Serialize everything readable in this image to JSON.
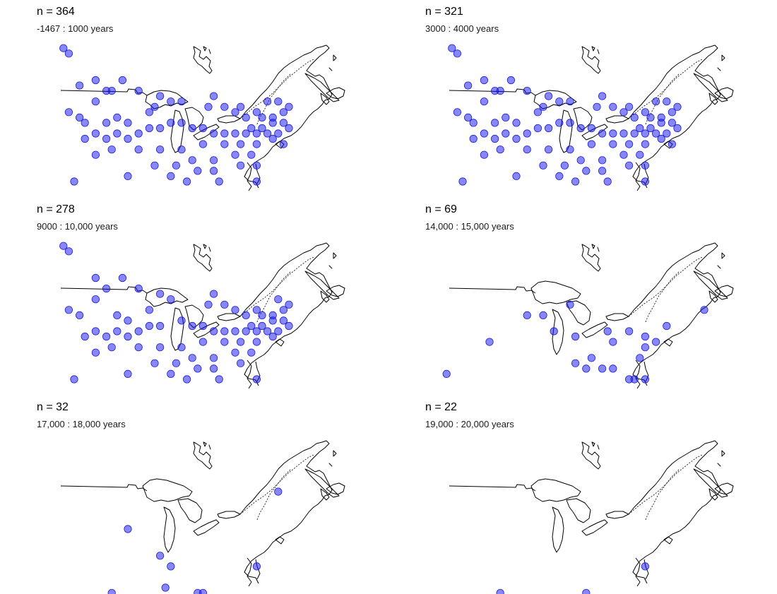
{
  "colors": {
    "site_fill": "#1010f0",
    "site_stroke": "#1e1ed8",
    "outline": "#000000",
    "background": "#ffffff"
  },
  "panels": [
    {
      "count_label": "n = 364",
      "range_label": "-1467 : 1000 years",
      "n": 364,
      "sites": [
        [
          -112,
          56
        ],
        [
          -111,
          55
        ],
        [
          -109,
          49
        ],
        [
          -106,
          50
        ],
        [
          -101,
          50
        ],
        [
          -104,
          48
        ],
        [
          -103,
          48
        ],
        [
          -111,
          44
        ],
        [
          -109,
          43
        ],
        [
          -106,
          46
        ],
        [
          -102,
          43
        ],
        [
          -98,
          48
        ],
        [
          -96,
          44
        ],
        [
          -95,
          45
        ],
        [
          -108,
          39
        ],
        [
          -104,
          39
        ],
        [
          -100,
          39
        ],
        [
          -94,
          47
        ],
        [
          -92,
          46
        ],
        [
          -90,
          46
        ],
        [
          -84,
          47
        ],
        [
          -85,
          45
        ],
        [
          -82,
          45
        ],
        [
          -80,
          44
        ],
        [
          -79,
          45
        ],
        [
          -78,
          43
        ],
        [
          -75,
          43
        ],
        [
          -73,
          43
        ],
        [
          -71,
          44
        ],
        [
          -70,
          45
        ],
        [
          -72,
          46
        ],
        [
          -74,
          46
        ],
        [
          -76,
          44
        ],
        [
          -77,
          41
        ],
        [
          -75,
          41
        ],
        [
          -73,
          42
        ],
        [
          -71,
          42
        ],
        [
          -70,
          41
        ],
        [
          -72,
          40
        ],
        [
          -74,
          40
        ],
        [
          -76,
          40
        ],
        [
          -78,
          40
        ],
        [
          -80,
          40
        ],
        [
          -82,
          40
        ],
        [
          -84,
          40
        ],
        [
          -86,
          41
        ],
        [
          -88,
          41
        ],
        [
          -90,
          42
        ],
        [
          -92,
          42
        ],
        [
          -94,
          41
        ],
        [
          -96,
          41
        ],
        [
          -98,
          40
        ],
        [
          -100,
          42
        ],
        [
          -102,
          40
        ],
        [
          -104,
          42
        ],
        [
          -106,
          40
        ],
        [
          -108,
          42
        ],
        [
          -103,
          37
        ],
        [
          -98,
          37
        ],
        [
          -94,
          37
        ],
        [
          -90,
          37
        ],
        [
          -86,
          38
        ],
        [
          -82,
          38
        ],
        [
          -79,
          38
        ],
        [
          -76,
          38
        ],
        [
          -73,
          39
        ],
        [
          -71,
          38
        ],
        [
          -88,
          35
        ],
        [
          -84,
          35
        ],
        [
          -80,
          36
        ],
        [
          -77,
          36
        ],
        [
          -106,
          36
        ],
        [
          -95,
          34
        ],
        [
          -91,
          34
        ],
        [
          -87,
          33
        ],
        [
          -84,
          33
        ],
        [
          -83,
          31
        ],
        [
          -76,
          31
        ],
        [
          -79,
          34
        ],
        [
          -76,
          34
        ],
        [
          -110,
          31
        ],
        [
          -100,
          32
        ],
        [
          -92,
          32
        ],
        [
          -89,
          31
        ]
      ],
      "layers": [
        "lakes",
        "coast",
        "appalachian"
      ]
    },
    {
      "count_label": "n = 321",
      "range_label": "3000 : 4000 years",
      "n": 321,
      "sites": [
        [
          -112,
          56
        ],
        [
          -111,
          55
        ],
        [
          -109,
          49
        ],
        [
          -106,
          50
        ],
        [
          -101,
          50
        ],
        [
          -104,
          48
        ],
        [
          -103,
          48
        ],
        [
          -111,
          44
        ],
        [
          -109,
          43
        ],
        [
          -106,
          46
        ],
        [
          -102,
          43
        ],
        [
          -98,
          48
        ],
        [
          -96,
          44
        ],
        [
          -95,
          45
        ],
        [
          -108,
          39
        ],
        [
          -104,
          39
        ],
        [
          -100,
          39
        ],
        [
          -94,
          47
        ],
        [
          -92,
          46
        ],
        [
          -90,
          46
        ],
        [
          -84,
          47
        ],
        [
          -85,
          45
        ],
        [
          -82,
          45
        ],
        [
          -80,
          44
        ],
        [
          -79,
          45
        ],
        [
          -78,
          43
        ],
        [
          -75,
          43
        ],
        [
          -73,
          43
        ],
        [
          -71,
          44
        ],
        [
          -70,
          45
        ],
        [
          -72,
          46
        ],
        [
          -74,
          46
        ],
        [
          -76,
          44
        ],
        [
          -77,
          41
        ],
        [
          -75,
          41
        ],
        [
          -73,
          42
        ],
        [
          -71,
          42
        ],
        [
          -70,
          41
        ],
        [
          -72,
          40
        ],
        [
          -74,
          40
        ],
        [
          -76,
          40
        ],
        [
          -78,
          40
        ],
        [
          -80,
          40
        ],
        [
          -82,
          40
        ],
        [
          -84,
          40
        ],
        [
          -86,
          41
        ],
        [
          -88,
          41
        ],
        [
          -90,
          42
        ],
        [
          -92,
          42
        ],
        [
          -94,
          41
        ],
        [
          -96,
          41
        ],
        [
          -98,
          40
        ],
        [
          -100,
          42
        ],
        [
          -102,
          40
        ],
        [
          -104,
          42
        ],
        [
          -106,
          40
        ],
        [
          -108,
          42
        ],
        [
          -103,
          37
        ],
        [
          -98,
          37
        ],
        [
          -94,
          37
        ],
        [
          -90,
          37
        ],
        [
          -86,
          38
        ],
        [
          -82,
          38
        ],
        [
          -79,
          38
        ],
        [
          -76,
          38
        ],
        [
          -73,
          39
        ],
        [
          -71,
          38
        ],
        [
          -88,
          35
        ],
        [
          -84,
          35
        ],
        [
          -80,
          36
        ],
        [
          -77,
          36
        ],
        [
          -106,
          36
        ],
        [
          -95,
          34
        ],
        [
          -91,
          34
        ],
        [
          -87,
          33
        ],
        [
          -84,
          33
        ],
        [
          -83,
          31
        ],
        [
          -76,
          31
        ],
        [
          -79,
          34
        ],
        [
          -76,
          34
        ],
        [
          -110,
          31
        ],
        [
          -100,
          32
        ],
        [
          -92,
          32
        ],
        [
          -89,
          31
        ]
      ],
      "layers": [
        "lakes",
        "coast",
        "appalachian"
      ]
    },
    {
      "count_label": "n = 278",
      "range_label": "9000 : 10,000 years",
      "n": 278,
      "sites": [
        [
          -112,
          56
        ],
        [
          -111,
          55
        ],
        [
          -106,
          50
        ],
        [
          -101,
          50
        ],
        [
          -104,
          48
        ],
        [
          -111,
          44
        ],
        [
          -109,
          43
        ],
        [
          -106,
          46
        ],
        [
          -102,
          43
        ],
        [
          -98,
          48
        ],
        [
          -96,
          44
        ],
        [
          -108,
          39
        ],
        [
          -104,
          39
        ],
        [
          -100,
          39
        ],
        [
          -94,
          47
        ],
        [
          -92,
          46
        ],
        [
          -84,
          47
        ],
        [
          -85,
          45
        ],
        [
          -82,
          45
        ],
        [
          -80,
          44
        ],
        [
          -78,
          43
        ],
        [
          -75,
          43
        ],
        [
          -73,
          43
        ],
        [
          -71,
          44
        ],
        [
          -70,
          45
        ],
        [
          -72,
          46
        ],
        [
          -76,
          44
        ],
        [
          -77,
          41
        ],
        [
          -75,
          41
        ],
        [
          -73,
          42
        ],
        [
          -71,
          42
        ],
        [
          -70,
          41
        ],
        [
          -72,
          40
        ],
        [
          -74,
          40
        ],
        [
          -76,
          40
        ],
        [
          -78,
          40
        ],
        [
          -80,
          40
        ],
        [
          -82,
          40
        ],
        [
          -84,
          40
        ],
        [
          -86,
          41
        ],
        [
          -88,
          41
        ],
        [
          -90,
          42
        ],
        [
          -94,
          41
        ],
        [
          -96,
          41
        ],
        [
          -98,
          40
        ],
        [
          -100,
          42
        ],
        [
          -102,
          40
        ],
        [
          -106,
          40
        ],
        [
          -103,
          37
        ],
        [
          -98,
          37
        ],
        [
          -94,
          37
        ],
        [
          -90,
          37
        ],
        [
          -86,
          38
        ],
        [
          -82,
          38
        ],
        [
          -79,
          38
        ],
        [
          -76,
          38
        ],
        [
          -73,
          39
        ],
        [
          -88,
          35
        ],
        [
          -84,
          35
        ],
        [
          -80,
          36
        ],
        [
          -77,
          36
        ],
        [
          -106,
          36
        ],
        [
          -95,
          34
        ],
        [
          -91,
          34
        ],
        [
          -87,
          33
        ],
        [
          -84,
          33
        ],
        [
          -83,
          31
        ],
        [
          -76,
          31
        ],
        [
          -79,
          34
        ],
        [
          -110,
          31
        ],
        [
          -100,
          32
        ],
        [
          -92,
          32
        ],
        [
          -89,
          31
        ]
      ],
      "layers": [
        "lakes",
        "coast",
        "appalachian"
      ]
    },
    {
      "count_label": "n = 69",
      "range_label": "14,000 : 15,000 years",
      "n": 69,
      "sites": [
        [
          -90,
          45
        ],
        [
          -95,
          43
        ],
        [
          -98,
          43
        ],
        [
          -93,
          40
        ],
        [
          -89,
          39
        ],
        [
          -83,
          40
        ],
        [
          -82,
          38
        ],
        [
          -79,
          40
        ],
        [
          -76,
          39
        ],
        [
          -76,
          37
        ],
        [
          -74,
          38
        ],
        [
          -72,
          41
        ],
        [
          -89,
          34
        ],
        [
          -86,
          35
        ],
        [
          -87,
          33
        ],
        [
          -84,
          33
        ],
        [
          -82,
          33
        ],
        [
          -77,
          35
        ],
        [
          -79,
          31
        ],
        [
          -78,
          31
        ],
        [
          -76,
          31
        ],
        [
          -113,
          32
        ],
        [
          -105,
          38
        ],
        [
          -65,
          44
        ]
      ],
      "layers": [
        "lakes-large",
        "coast",
        "appalachian"
      ]
    },
    {
      "count_label": "n = 32",
      "range_label": "17,000 : 18,000 years",
      "n": 32,
      "sites": [
        [
          -72,
          47
        ],
        [
          -100,
          40
        ],
        [
          -94,
          35
        ],
        [
          -92,
          33
        ],
        [
          -76,
          33
        ],
        [
          -93,
          29
        ],
        [
          -103,
          28
        ],
        [
          -87,
          28
        ],
        [
          -86,
          28
        ]
      ],
      "layers": [
        "lakes-large",
        "coast",
        "appalachian"
      ]
    },
    {
      "count_label": "n = 22",
      "range_label": "19,000 : 20,000 years",
      "n": 22,
      "sites": [
        [
          -76,
          33
        ],
        [
          -103,
          28
        ],
        [
          -87,
          28
        ]
      ],
      "layers": [
        "lakes-large",
        "coast",
        "appalachian"
      ]
    }
  ]
}
